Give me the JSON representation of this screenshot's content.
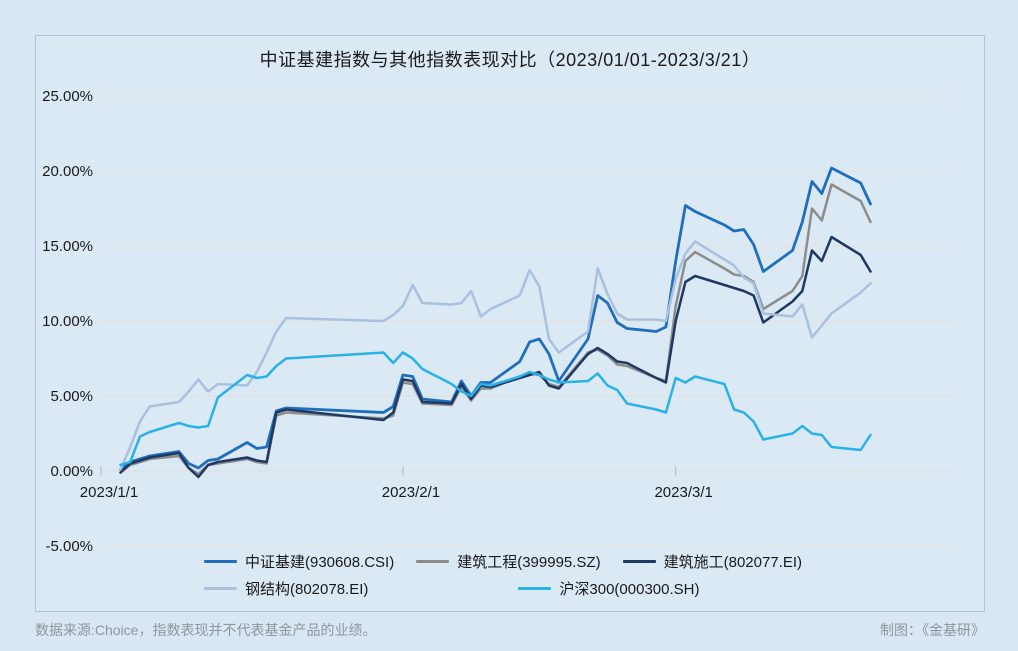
{
  "title": "中证基建指数与其他指数表现对比（2023/01/01-2023/3/21）",
  "footer": {
    "source_note": "数据来源:Choice，指数表现并不代表基金产品的业绩。",
    "credit": "制图：《金基研》"
  },
  "colors": {
    "background": "#d9e7f4",
    "panel_border": "#b0c4d8",
    "gridline": "#e3e0d8",
    "axis_text": "#1a1a1a"
  },
  "chart_data": {
    "type": "line",
    "title": "中证基建指数与其他指数表现对比（2023/01/01-2023/3/21）",
    "xlabel": "",
    "ylabel": "",
    "ylim": [
      -5,
      25
    ],
    "grid": "horizontal",
    "legend_position": "bottom",
    "y_ticks": [
      {
        "label": "25.00%",
        "value": 25
      },
      {
        "label": "20.00%",
        "value": 20
      },
      {
        "label": "15.00%",
        "value": 15
      },
      {
        "label": "10.00%",
        "value": 10
      },
      {
        "label": "5.00%",
        "value": 5
      },
      {
        "label": "0.00%",
        "value": 0
      },
      {
        "label": "-5.00%",
        "value": -5
      }
    ],
    "x_ticks": [
      {
        "label": "2023/1/1",
        "date": "1/1"
      },
      {
        "label": "2023/2/1",
        "date": "2/1"
      },
      {
        "label": "2023/3/1",
        "date": "3/1"
      }
    ],
    "dates": [
      "1/3",
      "1/4",
      "1/5",
      "1/6",
      "1/9",
      "1/10",
      "1/11",
      "1/12",
      "1/13",
      "1/16",
      "1/17",
      "1/18",
      "1/19",
      "1/20",
      "1/30",
      "1/31",
      "2/1",
      "2/2",
      "2/3",
      "2/6",
      "2/7",
      "2/8",
      "2/9",
      "2/10",
      "2/13",
      "2/14",
      "2/15",
      "2/16",
      "2/17",
      "2/20",
      "2/21",
      "2/22",
      "2/23",
      "2/24",
      "2/27",
      "2/28",
      "3/1",
      "3/2",
      "3/3",
      "3/6",
      "3/7",
      "3/8",
      "3/9",
      "3/10",
      "3/13",
      "3/14",
      "3/15",
      "3/16",
      "3/17",
      "3/20",
      "3/21"
    ],
    "series": [
      {
        "name": "中证基建(930608.CSI)",
        "color": "#1F6FBE",
        "width": 2.8,
        "values": [
          0.1,
          0.6,
          0.8,
          1.0,
          1.3,
          0.5,
          0.2,
          0.7,
          0.8,
          1.9,
          1.5,
          1.6,
          4.0,
          4.2,
          3.9,
          4.3,
          6.4,
          6.3,
          4.8,
          4.6,
          6.0,
          5.0,
          5.9,
          5.9,
          7.3,
          8.6,
          8.8,
          7.8,
          6.0,
          8.8,
          11.7,
          11.2,
          9.9,
          9.5,
          9.3,
          9.6,
          14.0,
          17.7,
          17.3,
          16.4,
          16.0,
          16.1,
          15.1,
          13.3,
          14.7,
          16.6,
          19.3,
          18.5,
          20.2,
          19.2,
          17.8
        ]
      },
      {
        "name": "建筑工程(399995.SZ)",
        "color": "#8C8C8C",
        "width": 2.5,
        "values": [
          -0.1,
          0.4,
          0.6,
          0.8,
          1.0,
          0.2,
          -0.2,
          0.4,
          0.5,
          0.8,
          0.6,
          0.5,
          3.7,
          3.9,
          3.5,
          3.7,
          5.9,
          5.8,
          4.5,
          4.4,
          5.6,
          4.7,
          5.5,
          5.5,
          6.3,
          6.5,
          6.4,
          5.8,
          5.6,
          7.9,
          8.1,
          7.7,
          7.1,
          7.0,
          6.2,
          6.0,
          11.0,
          14.0,
          14.6,
          13.5,
          13.1,
          13.0,
          12.6,
          10.8,
          12.0,
          13.0,
          17.5,
          16.7,
          19.1,
          18.0,
          16.6
        ]
      },
      {
        "name": "建筑施工(802077.EI)",
        "color": "#1F3864",
        "width": 2.5,
        "values": [
          -0.1,
          0.5,
          0.7,
          0.9,
          1.2,
          0.2,
          -0.4,
          0.4,
          0.6,
          0.9,
          0.7,
          0.6,
          3.9,
          4.1,
          3.4,
          3.9,
          6.1,
          6.0,
          4.6,
          4.5,
          5.8,
          4.8,
          5.7,
          5.6,
          6.2,
          6.4,
          6.6,
          5.7,
          5.5,
          7.8,
          8.2,
          7.8,
          7.3,
          7.2,
          6.2,
          5.9,
          10.0,
          12.6,
          13.0,
          12.4,
          12.2,
          12.0,
          11.7,
          9.9,
          11.3,
          12.0,
          14.7,
          14.0,
          15.6,
          14.4,
          13.3
        ]
      },
      {
        "name": "钢结构(802078.EI)",
        "color": "#A9C0DF",
        "width": 2.5,
        "values": [
          0.1,
          1.6,
          3.3,
          4.3,
          4.6,
          5.3,
          6.1,
          5.3,
          5.8,
          5.7,
          6.6,
          7.9,
          9.3,
          10.2,
          10.0,
          10.4,
          11.0,
          12.4,
          11.2,
          11.1,
          11.2,
          12.0,
          10.3,
          10.8,
          11.7,
          13.4,
          12.3,
          8.8,
          7.9,
          9.3,
          13.5,
          11.8,
          10.5,
          10.1,
          10.1,
          10.0,
          12.8,
          14.5,
          15.3,
          14.1,
          13.7,
          12.9,
          12.5,
          10.5,
          10.3,
          11.1,
          8.9,
          9.7,
          10.5,
          11.9,
          12.5
        ]
      },
      {
        "name": "沪深300(000300.SH)",
        "color": "#29B2E8",
        "width": 2.5,
        "values": [
          0.4,
          0.6,
          2.3,
          2.6,
          3.2,
          3.0,
          2.9,
          3.0,
          4.9,
          6.4,
          6.2,
          6.3,
          7.0,
          7.5,
          7.9,
          7.2,
          7.9,
          7.5,
          6.8,
          5.8,
          5.3,
          5.0,
          5.8,
          5.7,
          6.3,
          6.6,
          6.4,
          6.1,
          5.9,
          6.0,
          6.5,
          5.7,
          5.4,
          4.5,
          4.1,
          3.9,
          6.2,
          5.9,
          6.3,
          5.8,
          4.1,
          3.9,
          3.3,
          2.1,
          2.5,
          3.0,
          2.5,
          2.4,
          1.6,
          1.4,
          2.4
        ]
      }
    ]
  }
}
